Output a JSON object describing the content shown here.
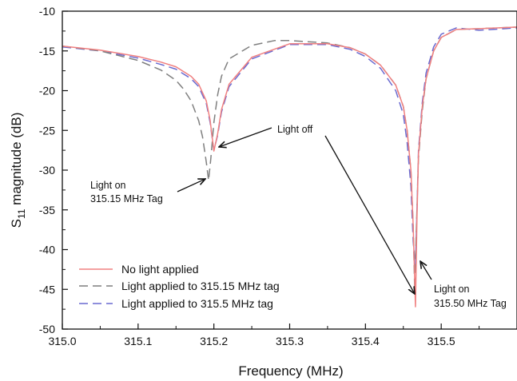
{
  "chart_data": {
    "type": "line",
    "xlabel": "Frequency (MHz)",
    "ylabel_main": "S",
    "ylabel_sub": "11",
    "ylabel_rest": " magnitude (dB)",
    "xlim": [
      315.0,
      315.6
    ],
    "ylim": [
      -50,
      -10
    ],
    "xticks": [
      "315.0",
      "315.1",
      "315.2",
      "315.3",
      "315.4",
      "315.5"
    ],
    "yticks": [
      "-10",
      "-15",
      "-20",
      "-25",
      "-30",
      "-35",
      "-40",
      "-45",
      "-50"
    ],
    "grid": false,
    "legend_position": "bottom-left",
    "series": [
      {
        "name": "No light applied",
        "color": "#f08080",
        "dash": "solid",
        "x": [
          315.0,
          315.05,
          315.1,
          315.13,
          315.15,
          315.17,
          315.18,
          315.19,
          315.195,
          315.2,
          315.205,
          315.21,
          315.22,
          315.25,
          315.3,
          315.35,
          315.38,
          315.4,
          315.42,
          315.44,
          315.45,
          315.455,
          315.46,
          315.463,
          315.466,
          315.468,
          315.47,
          315.475,
          315.48,
          315.49,
          315.5,
          315.52,
          315.55,
          315.6
        ],
        "y": [
          -14.4,
          -14.9,
          -15.7,
          -16.4,
          -17.0,
          -18.2,
          -19.2,
          -21.3,
          -23.7,
          -27.6,
          -25.4,
          -22.4,
          -19.2,
          -15.8,
          -14.1,
          -14.1,
          -14.6,
          -15.4,
          -16.8,
          -19.3,
          -22.0,
          -25.0,
          -30.0,
          -37.0,
          -47.2,
          -36.0,
          -28.0,
          -22.0,
          -18.5,
          -15.0,
          -13.3,
          -12.3,
          -12.2,
          -12.0
        ]
      },
      {
        "name": "Light applied to 315.15 MHz tag",
        "color": "#7f7f7f",
        "dash": "long",
        "x": [
          315.0,
          315.05,
          315.1,
          315.13,
          315.15,
          315.16,
          315.17,
          315.18,
          315.185,
          315.19,
          315.193,
          315.196,
          315.2,
          315.205,
          315.21,
          315.22,
          315.25,
          315.28,
          315.3,
          315.35,
          315.38,
          315.4,
          315.42,
          315.44,
          315.45,
          315.455,
          315.46,
          315.463,
          315.465,
          315.467,
          315.47,
          315.475,
          315.48,
          315.49,
          315.5,
          315.52,
          315.55,
          315.6
        ],
        "y": [
          -14.4,
          -15.0,
          -16.2,
          -17.4,
          -18.7,
          -19.8,
          -21.3,
          -23.8,
          -25.8,
          -29.0,
          -31.3,
          -28.5,
          -24.0,
          -20.5,
          -18.2,
          -16.0,
          -14.3,
          -13.7,
          -13.7,
          -14.0,
          -14.6,
          -15.4,
          -16.8,
          -19.3,
          -22.0,
          -25.0,
          -30.0,
          -37.0,
          -45.0,
          -38.0,
          -28.5,
          -22.5,
          -18.5,
          -15.0,
          -13.3,
          -12.3,
          -12.2,
          -12.0
        ]
      },
      {
        "name": "Light applied to 315.5 MHz tag",
        "color": "#6a6ad0",
        "dash": "long",
        "x": [
          315.0,
          315.05,
          315.1,
          315.13,
          315.15,
          315.17,
          315.18,
          315.19,
          315.195,
          315.2,
          315.205,
          315.21,
          315.22,
          315.25,
          315.3,
          315.35,
          315.38,
          315.4,
          315.42,
          315.44,
          315.45,
          315.455,
          315.46,
          315.463,
          315.466,
          315.468,
          315.47,
          315.475,
          315.48,
          315.49,
          315.5,
          315.52,
          315.55,
          315.6
        ],
        "y": [
          -14.5,
          -15.0,
          -15.9,
          -16.7,
          -17.3,
          -18.5,
          -19.5,
          -21.6,
          -24.0,
          -27.5,
          -25.6,
          -22.7,
          -19.5,
          -16.0,
          -14.2,
          -14.2,
          -14.8,
          -15.7,
          -17.2,
          -20.0,
          -23.0,
          -26.5,
          -32.0,
          -39.0,
          -42.0,
          -35.0,
          -27.5,
          -21.5,
          -17.8,
          -14.5,
          -12.9,
          -12.1,
          -12.4,
          -12.1
        ]
      }
    ],
    "annotations": [
      {
        "lines": [
          "Light on",
          "315.15 MHz Tag"
        ]
      },
      {
        "lines": [
          "Light off"
        ]
      },
      {
        "lines": [
          "Light on",
          "315.50 MHz Tag"
        ]
      }
    ]
  }
}
